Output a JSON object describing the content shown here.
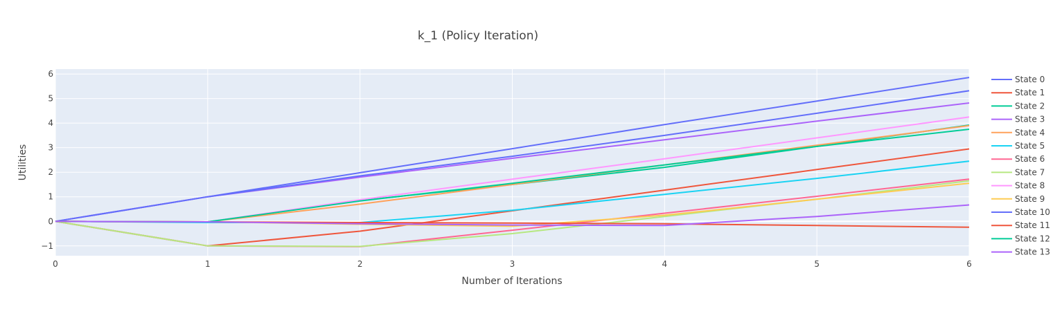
{
  "chart_data": {
    "type": "line",
    "title": "k_1 (Policy Iteration)",
    "xlabel": "Number of Iterations",
    "ylabel": "Utilities",
    "xlim": [
      0,
      6
    ],
    "ylim": [
      -1.4,
      6.2
    ],
    "xticks": [
      0,
      1,
      2,
      3,
      4,
      5,
      6
    ],
    "yticks": [
      -1,
      0,
      1,
      2,
      3,
      4,
      5,
      6
    ],
    "ytick_labels": [
      "−1",
      "0",
      "1",
      "2",
      "3",
      "4",
      "5",
      "6"
    ],
    "grid": true,
    "legend_position": "right",
    "plot_background": "#E5ECF6",
    "x": [
      0,
      1,
      2,
      3,
      4,
      5,
      6
    ],
    "series": [
      {
        "name": "State 0",
        "color": "#636EFA",
        "values": [
          0,
          1,
          1.98,
          2.96,
          3.94,
          4.9,
          5.86
        ]
      },
      {
        "name": "State 1",
        "color": "#EF553B",
        "values": [
          0,
          -1,
          -0.4,
          0.43,
          1.27,
          2.11,
          2.95
        ]
      },
      {
        "name": "State 2",
        "color": "#00CC96",
        "values": [
          0,
          -0.02,
          0.85,
          1.5,
          2.2,
          3.05,
          3.92
        ]
      },
      {
        "name": "State 3",
        "color": "#AB63FA",
        "values": [
          0,
          1,
          1.8,
          2.57,
          3.32,
          4.08,
          4.82
        ]
      },
      {
        "name": "State 4",
        "color": "#FFA15A",
        "values": [
          0,
          -0.02,
          0.7,
          1.5,
          2.3,
          3.1,
          3.9
        ]
      },
      {
        "name": "State 5",
        "color": "#19D3F3",
        "values": [
          0,
          -0.05,
          -0.05,
          0.45,
          1.1,
          1.75,
          2.45
        ]
      },
      {
        "name": "State 6",
        "color": "#FF6692",
        "values": [
          0,
          -1,
          -1.03,
          -0.36,
          0.33,
          1.02,
          1.72
        ]
      },
      {
        "name": "State 7",
        "color": "#B6E880",
        "values": [
          0,
          -1,
          -1.02,
          -0.5,
          0.2,
          0.9,
          1.65
        ]
      },
      {
        "name": "State 8",
        "color": "#FF97FF",
        "values": [
          0,
          -0.02,
          0.88,
          1.72,
          2.55,
          3.4,
          4.25
        ]
      },
      {
        "name": "State 9",
        "color": "#FECB52",
        "values": [
          0,
          -0.02,
          -0.12,
          -0.2,
          0.25,
          0.9,
          1.55
        ]
      },
      {
        "name": "State 10",
        "color": "#636EFA",
        "values": [
          0,
          1,
          1.85,
          2.65,
          3.5,
          4.4,
          5.32
        ]
      },
      {
        "name": "State 11",
        "color": "#EF553B",
        "values": [
          0,
          -0.02,
          -0.05,
          -0.07,
          -0.1,
          -0.17,
          -0.24
        ]
      },
      {
        "name": "State 12",
        "color": "#00CC96",
        "values": [
          0,
          -0.02,
          0.83,
          1.55,
          2.3,
          3.05,
          3.75
        ]
      },
      {
        "name": "State 13",
        "color": "#AB63FA",
        "values": [
          0,
          -0.02,
          -0.1,
          -0.15,
          -0.17,
          0.2,
          0.67
        ]
      }
    ]
  }
}
